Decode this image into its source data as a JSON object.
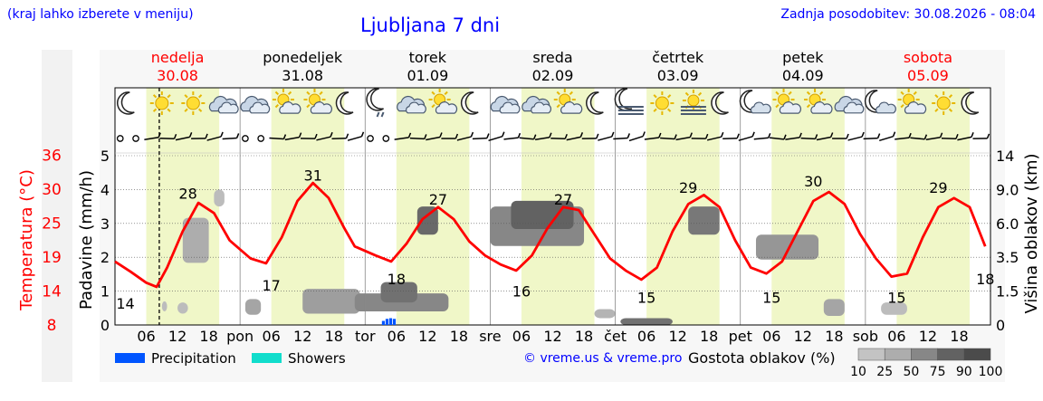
{
  "header": {
    "hint": "(kraj lahko izberete v meniju)",
    "title": "Ljubljana 7 dni",
    "updated": "Zadnja posodobitev: 30.08.2026 - 08:04"
  },
  "colors": {
    "temperature": "#ff0000",
    "day_band": "#f0f7c8",
    "precipitation": "#0055ff",
    "showers": "#11ddcc",
    "axis": "#000000",
    "weekend": "#ff0000"
  },
  "days": [
    {
      "name": "nedelja",
      "date": "30.08",
      "weekend": true,
      "abbr": ""
    },
    {
      "name": "ponedeljek",
      "date": "31.08",
      "weekend": false,
      "abbr": "pon"
    },
    {
      "name": "torek",
      "date": "01.09",
      "weekend": false,
      "abbr": "tor"
    },
    {
      "name": "sreda",
      "date": "02.09",
      "weekend": false,
      "abbr": "sre"
    },
    {
      "name": "četrtek",
      "date": "03.09",
      "weekend": false,
      "abbr": "čet"
    },
    {
      "name": "petek",
      "date": "04.09",
      "weekend": false,
      "abbr": "pet"
    },
    {
      "name": "sobota",
      "date": "05.09",
      "weekend": true,
      "abbr": "sob"
    }
  ],
  "icons": [
    [
      "moon-icon",
      "sun-icon",
      "sun-icon",
      "cloudy-icon"
    ],
    [
      "cloudy-icon",
      "partly-cloudy-icon",
      "partly-cloudy-icon",
      "moon-icon"
    ],
    [
      "moon-drizzle-icon",
      "cloudy-icon",
      "partly-cloudy-icon",
      "moon-icon"
    ],
    [
      "cloudy-icon",
      "cloudy-icon",
      "partly-cloudy-icon",
      "moon-icon"
    ],
    [
      "moon-fog-icon",
      "sun-icon",
      "fog-icon",
      "moon-icon"
    ],
    [
      "moon-cloud-icon",
      "partly-cloudy-icon",
      "partly-cloudy-icon",
      "cloudy-icon"
    ],
    [
      "moon-cloud-icon",
      "partly-cloudy-icon",
      "sun-icon",
      "moon-icon"
    ]
  ],
  "chart_data": {
    "type": "line",
    "title": "Ljubljana 7 dni",
    "x_ticks": [
      "06",
      "12",
      "18",
      "pon",
      "06",
      "12",
      "18",
      "tor",
      "06",
      "12",
      "18",
      "sre",
      "06",
      "12",
      "18",
      "čet",
      "06",
      "12",
      "18",
      "pet",
      "06",
      "12",
      "18",
      "sob",
      "06",
      "12",
      "18"
    ],
    "left_axis": {
      "label": "Padavine (mm/h)",
      "ylim": [
        0,
        5
      ],
      "ticks": [
        "0",
        "1",
        "2",
        "3",
        "4",
        "5"
      ]
    },
    "temp_axis": {
      "label": "Temperatura (°C)",
      "ticks": [
        "8",
        "14",
        "19",
        "25",
        "30",
        "36"
      ]
    },
    "right_axis": {
      "label": "Višina oblakov (km)",
      "ticks": [
        "0",
        "1.5",
        "3.5",
        "6.0",
        "9.0",
        "14"
      ]
    },
    "now_hour": 8.5,
    "series": [
      {
        "name": "Temperatura (°C)",
        "hours": [
          0,
          3,
          6,
          8,
          10,
          13,
          16,
          19,
          22,
          26,
          29,
          32,
          35,
          38,
          41,
          44,
          46,
          50,
          53,
          56,
          59,
          62,
          65,
          68,
          71,
          74,
          77,
          80,
          83,
          86,
          89,
          92,
          95,
          98,
          101,
          104,
          107,
          110,
          113,
          116,
          119,
          122,
          125,
          128,
          131,
          134,
          137,
          140,
          143,
          146,
          149,
          152,
          155,
          158,
          161,
          164,
          167
        ],
        "values": [
          18.5,
          16.8,
          15.0,
          14.3,
          17.5,
          23.5,
          28.2,
          26.5,
          22.0,
          19.0,
          18.2,
          22.5,
          28.5,
          31.5,
          29.0,
          24.0,
          21.0,
          19.5,
          18.5,
          21.5,
          25.5,
          27.5,
          25.5,
          21.8,
          19.5,
          18.0,
          17.0,
          19.5,
          24.0,
          27.5,
          27.0,
          23.0,
          19.0,
          17.0,
          15.5,
          17.5,
          23.5,
          28.0,
          29.5,
          27.5,
          22.0,
          17.5,
          16.5,
          18.5,
          23.5,
          28.5,
          30.0,
          28.0,
          23.0,
          19.0,
          16.0,
          16.5,
          22.5,
          27.5,
          29.0,
          27.5,
          21.0
        ]
      }
    ],
    "temp_labels": [
      {
        "hour": 2,
        "value": "14"
      },
      {
        "hour": 14,
        "value": "28"
      },
      {
        "hour": 30,
        "value": "17"
      },
      {
        "hour": 38,
        "value": "31"
      },
      {
        "hour": 54,
        "value": "18"
      },
      {
        "hour": 62,
        "value": "27"
      },
      {
        "hour": 78,
        "value": "16"
      },
      {
        "hour": 86,
        "value": "27"
      },
      {
        "hour": 102,
        "value": "15"
      },
      {
        "hour": 110,
        "value": "29"
      },
      {
        "hour": 126,
        "value": "15"
      },
      {
        "hour": 134,
        "value": "30"
      },
      {
        "hour": 150,
        "value": "15"
      },
      {
        "hour": 158,
        "value": "29"
      },
      {
        "hour": 167,
        "value": "18"
      }
    ],
    "precipitation": [
      {
        "hour": 51.5,
        "mm": 0.12
      },
      {
        "hour": 52.2,
        "mm": 0.18
      },
      {
        "hour": 52.9,
        "mm": 0.2
      },
      {
        "hour": 53.6,
        "mm": 0.18
      }
    ],
    "clouds": [
      {
        "h0": 9,
        "h1": 10,
        "km0": 1.2,
        "km1": 2.1,
        "density": 25
      },
      {
        "h0": 12,
        "h1": 14,
        "km0": 1.0,
        "km1": 2.0,
        "density": 25
      },
      {
        "h0": 13,
        "h1": 18,
        "km0": 5.5,
        "km1": 9.5,
        "density": 35
      },
      {
        "h0": 19,
        "h1": 21,
        "km0": 10.5,
        "km1": 12.0,
        "density": 25
      },
      {
        "h0": 25,
        "h1": 28,
        "km0": 0.9,
        "km1": 2.3,
        "density": 40
      },
      {
        "h0": 36,
        "h1": 47,
        "km0": 1.0,
        "km1": 3.2,
        "density": 45
      },
      {
        "h0": 46,
        "h1": 64,
        "km0": 1.2,
        "km1": 2.8,
        "density": 60
      },
      {
        "h0": 51,
        "h1": 58,
        "km0": 2.0,
        "km1": 3.8,
        "density": 75
      },
      {
        "h0": 58,
        "h1": 62,
        "km0": 8.0,
        "km1": 10.5,
        "density": 80
      },
      {
        "h0": 72,
        "h1": 90,
        "km0": 7.0,
        "km1": 10.5,
        "density": 60
      },
      {
        "h0": 76,
        "h1": 88,
        "km0": 8.5,
        "km1": 11.0,
        "density": 85
      },
      {
        "h0": 92,
        "h1": 96,
        "km0": 0.6,
        "km1": 1.4,
        "density": 30
      },
      {
        "h0": 97,
        "h1": 107,
        "km0": 0.0,
        "km1": 0.6,
        "density": 75
      },
      {
        "h0": 110,
        "h1": 116,
        "km0": 8.0,
        "km1": 10.5,
        "density": 70
      },
      {
        "h0": 123,
        "h1": 135,
        "km0": 5.8,
        "km1": 8.0,
        "density": 50
      },
      {
        "h0": 136,
        "h1": 140,
        "km0": 0.8,
        "km1": 2.3,
        "density": 40
      },
      {
        "h0": 147,
        "h1": 152,
        "km0": 0.9,
        "km1": 2.0,
        "density": 25
      }
    ]
  },
  "legend": {
    "precipitation": "Precipitation",
    "showers": "Showers",
    "credit": "© vreme.us & vreme.pro",
    "cloud_title": "Gostota oblakov (%)",
    "cloud_levels": [
      "10",
      "25",
      "50",
      "75",
      "90",
      "100"
    ]
  }
}
